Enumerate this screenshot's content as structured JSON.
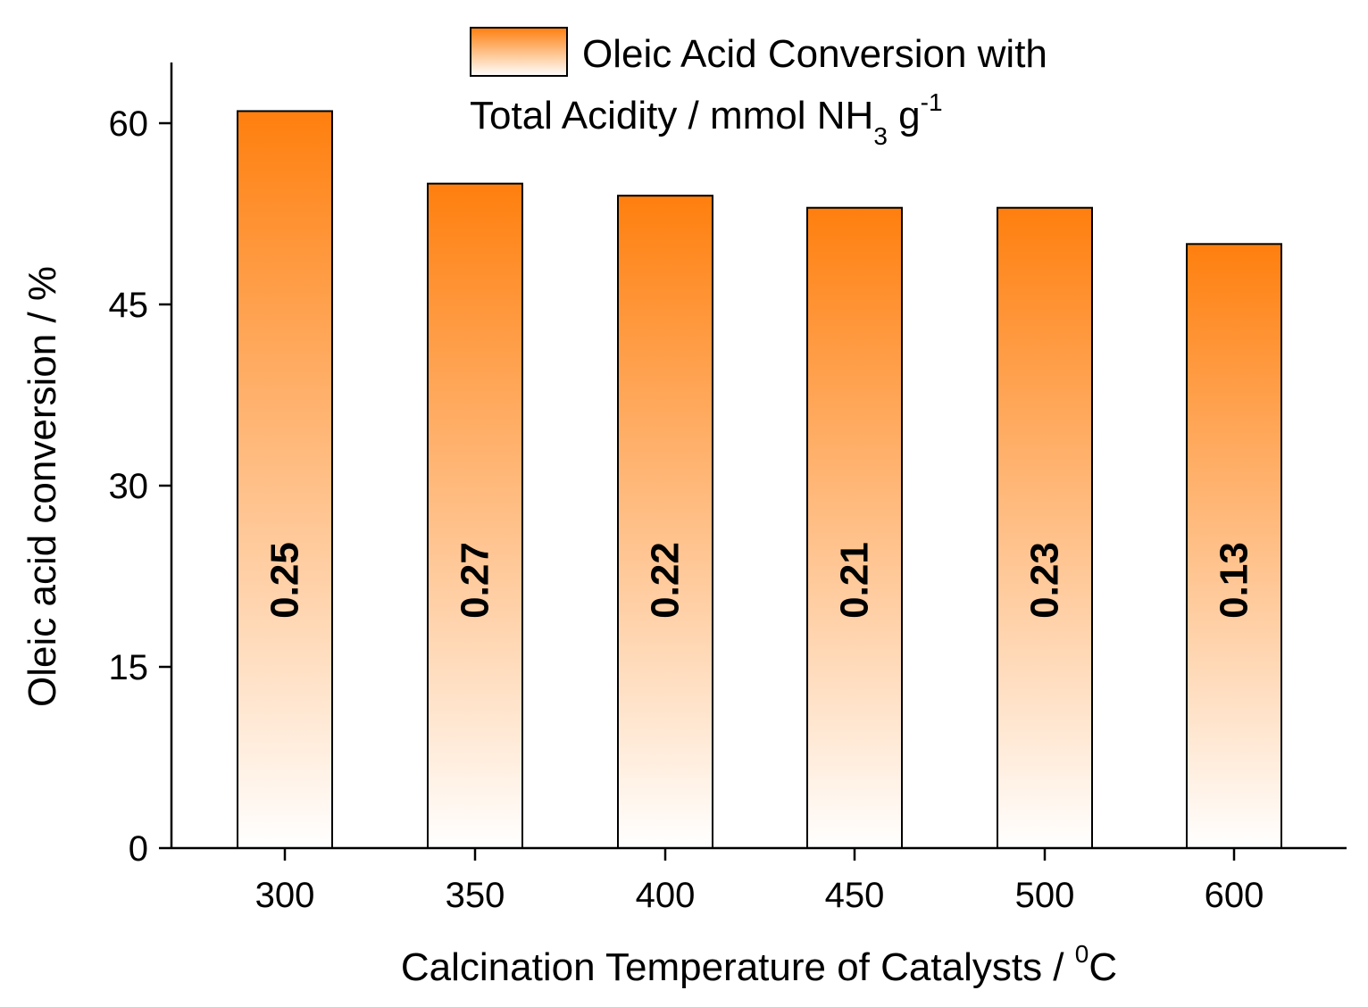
{
  "chart_data": {
    "type": "bar",
    "title": "",
    "xlabel": "Calcination Temperature of Catalysts / ",
    "xlabel_sup": "0",
    "xlabel_unit": "C",
    "ylabel": "Oleic acid conversion / %",
    "categories": [
      "300",
      "350",
      "400",
      "450",
      "500",
      "600"
    ],
    "values": [
      61,
      55,
      54,
      53,
      53,
      50
    ],
    "bar_labels": [
      "0.25",
      "0.27",
      "0.22",
      "0.21",
      "0.23",
      "0.13"
    ],
    "yticks": [
      "0",
      "15",
      "30",
      "45",
      "60"
    ],
    "ylim": [
      0,
      65
    ],
    "grid": false,
    "legend": {
      "position": "top-center",
      "line1": "Oleic Acid Conversion with",
      "line2_prefix": "Total Acidity / mmol NH",
      "line2_sub": "3",
      "line2_mid": " g",
      "line2_sup": "-1"
    },
    "colors": {
      "bar_top": "#FF7F0E",
      "bar_bottom": "#FFFFFF",
      "edge": "#000000"
    }
  }
}
